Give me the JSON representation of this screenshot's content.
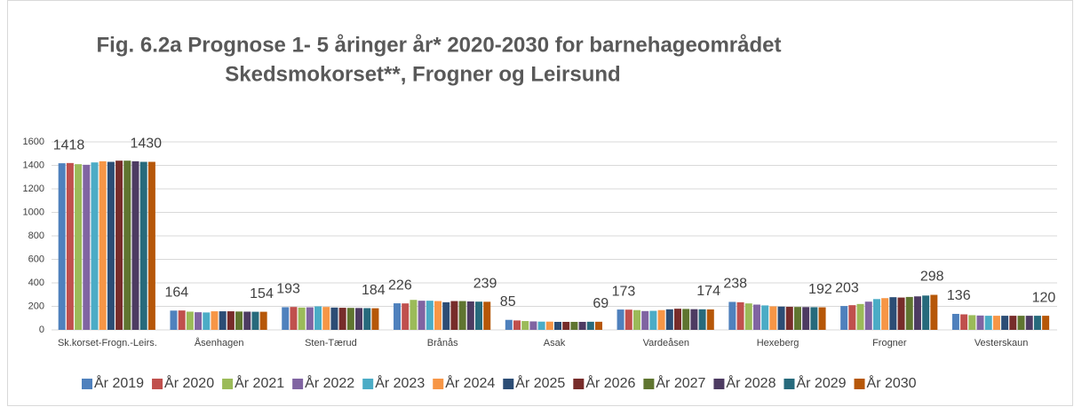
{
  "chart_data": {
    "type": "bar",
    "title": [
      "Fig. 6.2a Prognose 1- 5 åringer år* 2020-2030 for barnehageområdet",
      "Skedsmokorset**, Frogner og Leirsund"
    ],
    "categories": [
      "Sk.korset-Frogn.-Leirs.",
      "Åsenhagen",
      "Sten-Tærud",
      "Brånås",
      "Asak",
      "Vardeåsen",
      "Hexeberg",
      "Frogner",
      "Vesterskaun"
    ],
    "ylim": [
      0,
      1600
    ],
    "yticks": [
      0,
      200,
      400,
      600,
      800,
      1000,
      1200,
      1400,
      1600
    ],
    "grid": true,
    "legend": "bottom",
    "series": [
      {
        "name": "År 2019",
        "color": "#4f81bd",
        "show_labels": true,
        "values": [
          1418,
          164,
          193,
          226,
          85,
          173,
          238,
          203,
          136
        ]
      },
      {
        "name": "År 2020",
        "color": "#c0504d",
        "values": [
          1420,
          165,
          195,
          225,
          80,
          172,
          235,
          210,
          132
        ]
      },
      {
        "name": "År 2021",
        "color": "#9bbb59",
        "values": [
          1410,
          155,
          190,
          255,
          75,
          168,
          225,
          220,
          125
        ]
      },
      {
        "name": "År 2022",
        "color": "#8064a2",
        "values": [
          1405,
          150,
          192,
          248,
          72,
          160,
          215,
          240,
          122
        ]
      },
      {
        "name": "År 2023",
        "color": "#4bacc6",
        "values": [
          1425,
          148,
          200,
          248,
          70,
          162,
          208,
          262,
          120
        ]
      },
      {
        "name": "År 2024",
        "color": "#f79646",
        "values": [
          1435,
          158,
          195,
          245,
          70,
          168,
          200,
          270,
          120
        ]
      },
      {
        "name": "År 2025",
        "color": "#2c4d75",
        "values": [
          1430,
          158,
          190,
          235,
          68,
          175,
          198,
          278,
          120
        ]
      },
      {
        "name": "År 2026",
        "color": "#772c2a",
        "values": [
          1440,
          158,
          188,
          245,
          68,
          180,
          196,
          275,
          120
        ]
      },
      {
        "name": "År 2027",
        "color": "#5f7530",
        "values": [
          1440,
          156,
          187,
          245,
          68,
          178,
          195,
          280,
          120
        ]
      },
      {
        "name": "År 2028",
        "color": "#4d3b62",
        "values": [
          1435,
          155,
          186,
          242,
          68,
          176,
          194,
          285,
          120
        ]
      },
      {
        "name": "År 2029",
        "color": "#276a7c",
        "values": [
          1430,
          154,
          185,
          240,
          69,
          175,
          193,
          292,
          120
        ]
      },
      {
        "name": "År 2030",
        "color": "#b65708",
        "show_labels": true,
        "values": [
          1430,
          154,
          184,
          239,
          69,
          174,
          192,
          298,
          120
        ]
      }
    ]
  }
}
